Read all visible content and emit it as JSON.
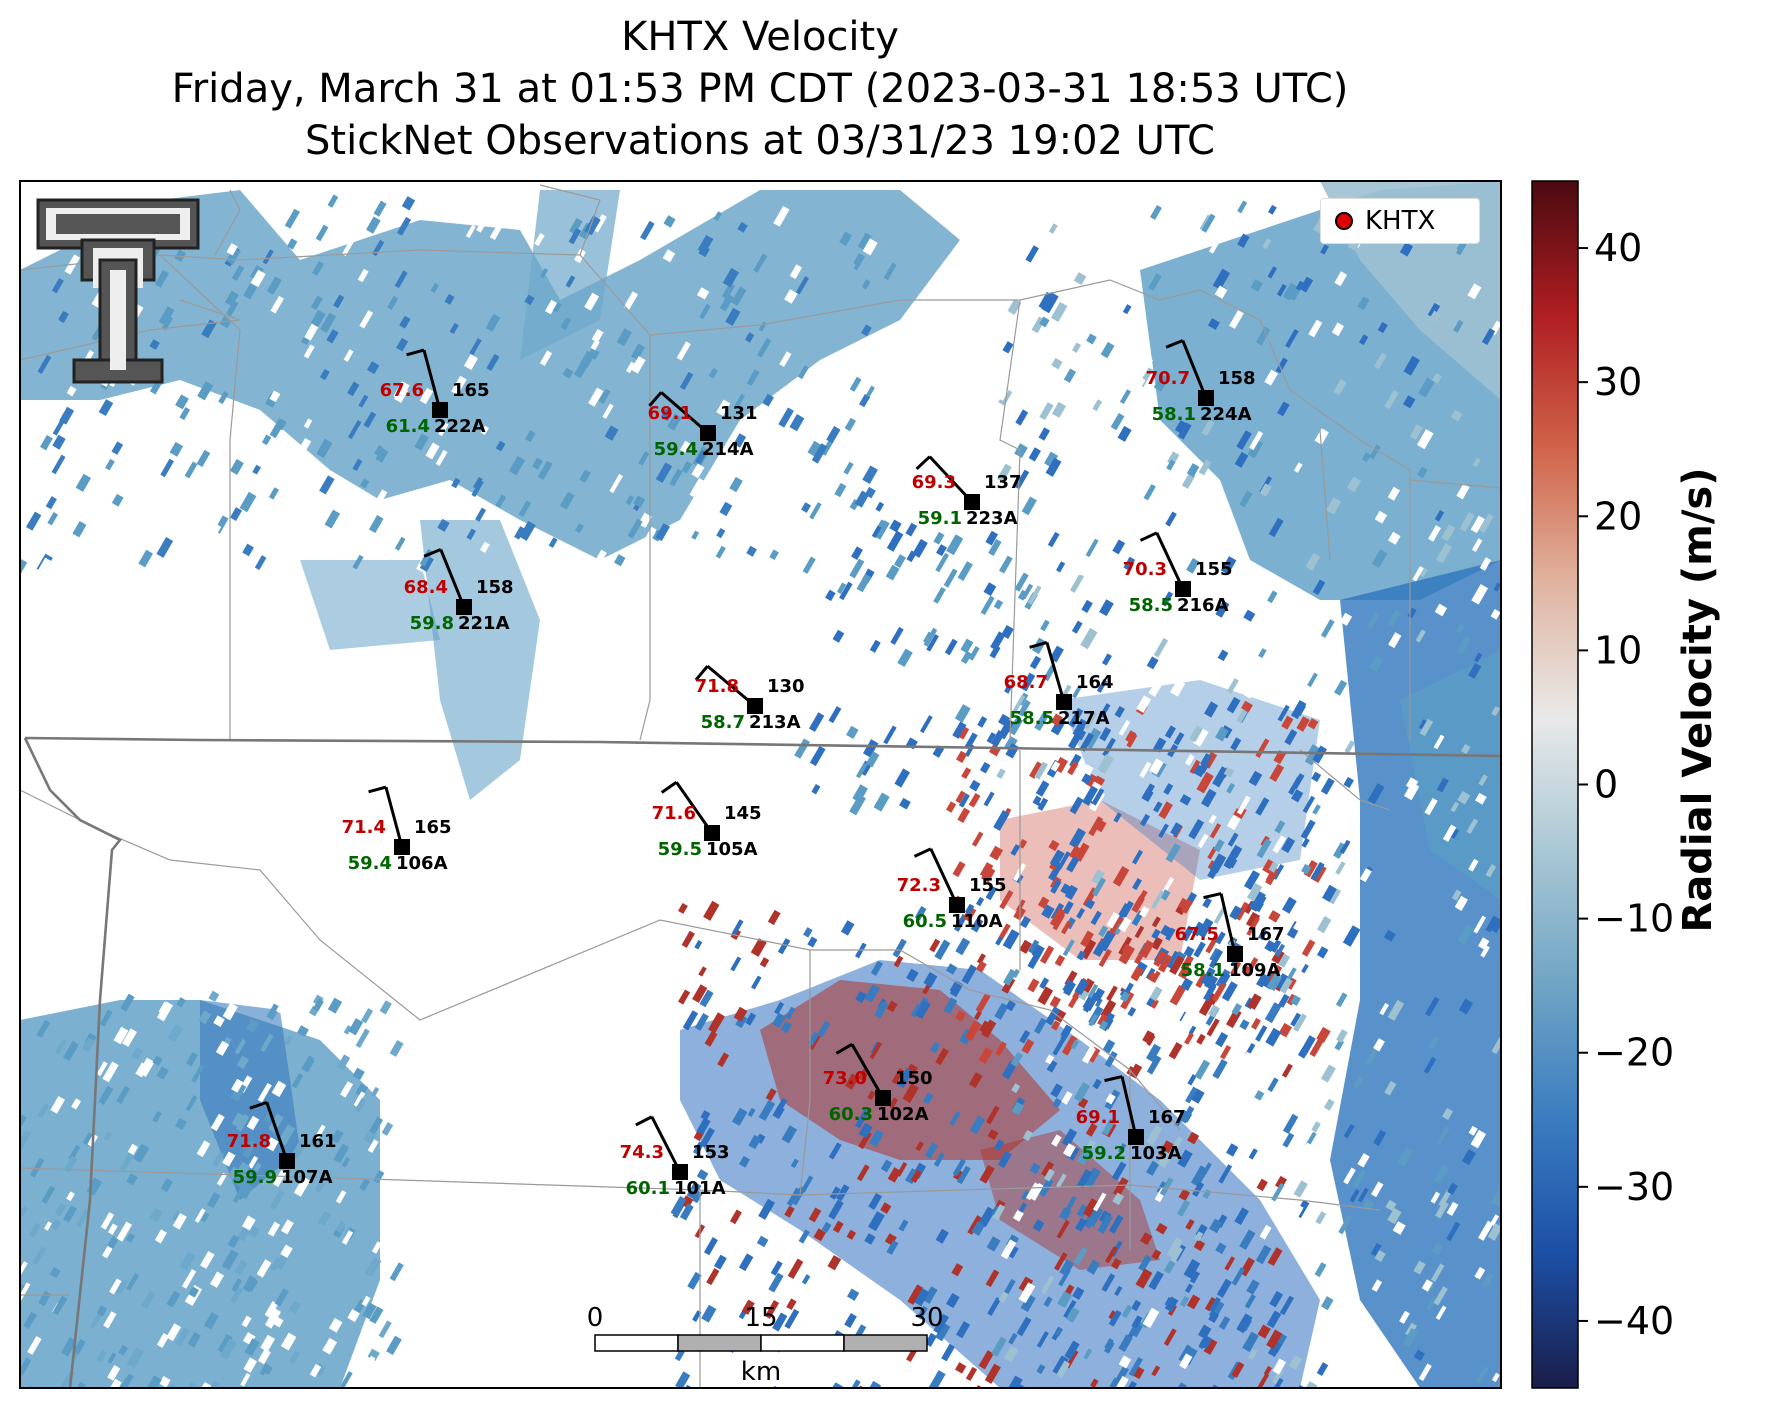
{
  "title": {
    "line1": "KHTX Velocity",
    "line2": "Friday, March 31 at 01:53 PM CDT (2023-03-31 18:53 UTC)",
    "line3": "StickNet Observations at 03/31/23 19:02 UTC"
  },
  "legend": {
    "label": "KHTX",
    "marker_color": "#e00000"
  },
  "colorbar": {
    "title": "Radial Velocity (m/s)",
    "min": -45,
    "max": 45,
    "ticks": [
      "40",
      "30",
      "20",
      "10",
      "0",
      "−10",
      "−20",
      "−30",
      "−40"
    ],
    "tick_values": [
      40,
      30,
      20,
      10,
      0,
      -10,
      -20,
      -30,
      -40
    ],
    "stops": [
      "#1a1d4a",
      "#1c4fa6",
      "#3a7cc0",
      "#6fa4c4",
      "#a9c7d4",
      "#e9e9e9",
      "#e0b4a0",
      "#d0644a",
      "#b01e22",
      "#4a0a10"
    ]
  },
  "scalebar": {
    "labels": [
      "0",
      "15",
      "30"
    ],
    "unit": "km"
  },
  "stations": [
    {
      "id": "222A",
      "temp": "67.6",
      "dew": "61.4",
      "dir": "165"
    },
    {
      "id": "214A",
      "temp": "69.1",
      "dew": "59.4",
      "dir": "131"
    },
    {
      "id": "223A",
      "temp": "69.3",
      "dew": "59.1",
      "dir": "137"
    },
    {
      "id": "224A",
      "temp": "70.7",
      "dew": "58.1",
      "dir": "158"
    },
    {
      "id": "221A",
      "temp": "68.4",
      "dew": "59.8",
      "dir": "158"
    },
    {
      "id": "216A",
      "temp": "70.3",
      "dew": "58.5",
      "dir": "155"
    },
    {
      "id": "213A",
      "temp": "71.8",
      "dew": "58.7",
      "dir": "130"
    },
    {
      "id": "217A",
      "temp": "68.7",
      "dew": "58.5",
      "dir": "164"
    },
    {
      "id": "106A",
      "temp": "71.4",
      "dew": "59.4",
      "dir": "165"
    },
    {
      "id": "105A",
      "temp": "71.6",
      "dew": "59.5",
      "dir": "145"
    },
    {
      "id": "110A",
      "temp": "72.3",
      "dew": "60.5",
      "dir": "155"
    },
    {
      "id": "109A",
      "temp": "67.5",
      "dew": "58.1",
      "dir": "167"
    },
    {
      "id": "102A",
      "temp": "73.0",
      "dew": "60.3",
      "dir": "150"
    },
    {
      "id": "103A",
      "temp": "69.1",
      "dew": "59.2",
      "dir": "167"
    },
    {
      "id": "107A",
      "temp": "71.8",
      "dew": "59.9",
      "dir": "161"
    },
    {
      "id": "101A",
      "temp": "74.3",
      "dew": "60.1",
      "dir": "153"
    }
  ],
  "colors": {
    "temp": "#c00000",
    "dew": "#006400",
    "station": "#000000"
  }
}
